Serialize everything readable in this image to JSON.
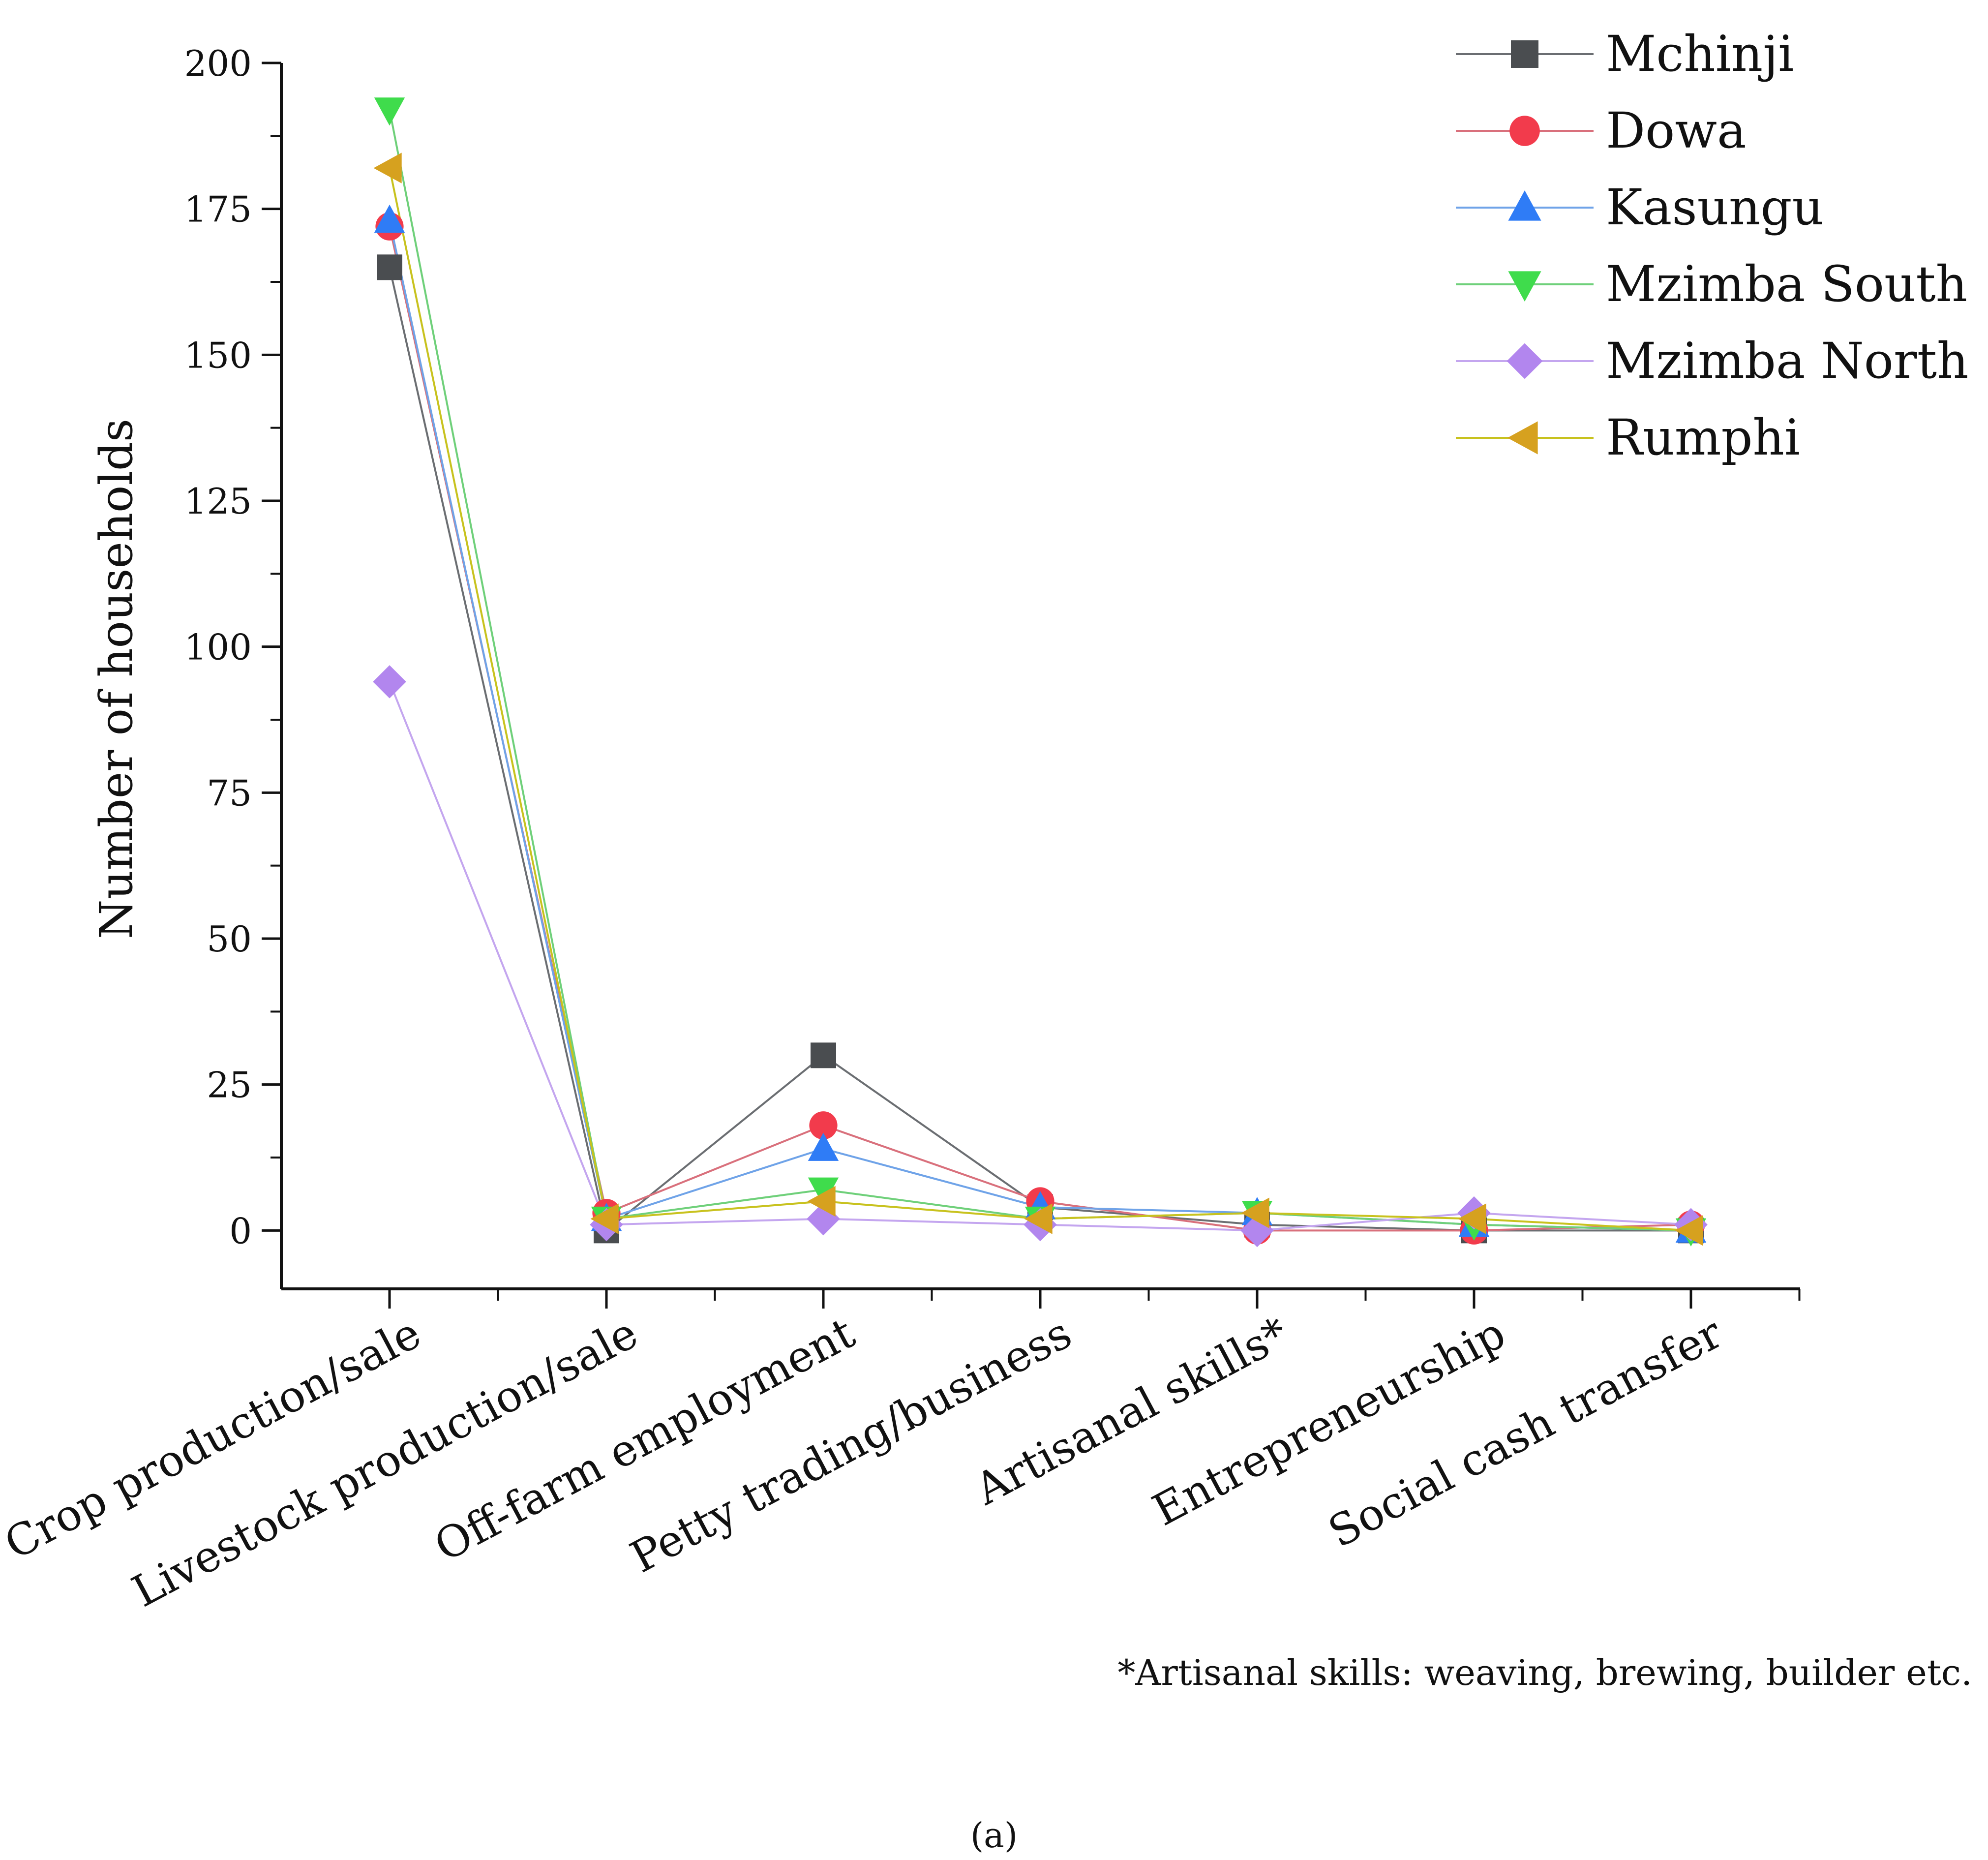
{
  "chart_data": {
    "type": "line",
    "title": "",
    "xlabel": "",
    "ylabel": "Number of households",
    "ylim": [
      -10,
      200
    ],
    "yticks": [
      0,
      25,
      50,
      75,
      100,
      125,
      150,
      175,
      200
    ],
    "grid": false,
    "legend_position": "top-right",
    "categories": [
      "Crop production/sale",
      "Livestock production/sale",
      "Off-farm employment",
      "Petty trading/business",
      "Artisanal skills*",
      "Entrepreneurship",
      "Social cash transfer"
    ],
    "series": [
      {
        "name": "Mchinji",
        "marker": "square",
        "marker_color": "#4a4d50",
        "line_color": "#6b6e72",
        "values": [
          165,
          0,
          30,
          4,
          1,
          0,
          0
        ]
      },
      {
        "name": "Dowa",
        "marker": "circle",
        "marker_color": "#f23b4c",
        "line_color": "#d9707c",
        "values": [
          172,
          3,
          18,
          5,
          0,
          0,
          1
        ]
      },
      {
        "name": "Kasungu",
        "marker": "triangle-up",
        "marker_color": "#2f7cf6",
        "line_color": "#6fa3e8",
        "values": [
          173,
          2,
          14,
          4,
          3,
          1,
          0
        ]
      },
      {
        "name": "Mzimba South",
        "marker": "triangle-down",
        "marker_color": "#3fdc4c",
        "line_color": "#6fd07a",
        "values": [
          192,
          2,
          7,
          2,
          3,
          1,
          0
        ]
      },
      {
        "name": "Mzimba North",
        "marker": "diamond",
        "marker_color": "#b286ee",
        "line_color": "#c4a6ef",
        "values": [
          94,
          1,
          2,
          1,
          0,
          3,
          1
        ]
      },
      {
        "name": "Rumphi",
        "marker": "triangle-left",
        "marker_color": "#d6a11f",
        "line_color": "#c8c21e",
        "values": [
          182,
          2,
          5,
          2,
          3,
          2,
          0
        ]
      }
    ],
    "footnote": "*Artisanal skills: weaving, brewing, builder etc.",
    "panel_label": "(a)"
  }
}
